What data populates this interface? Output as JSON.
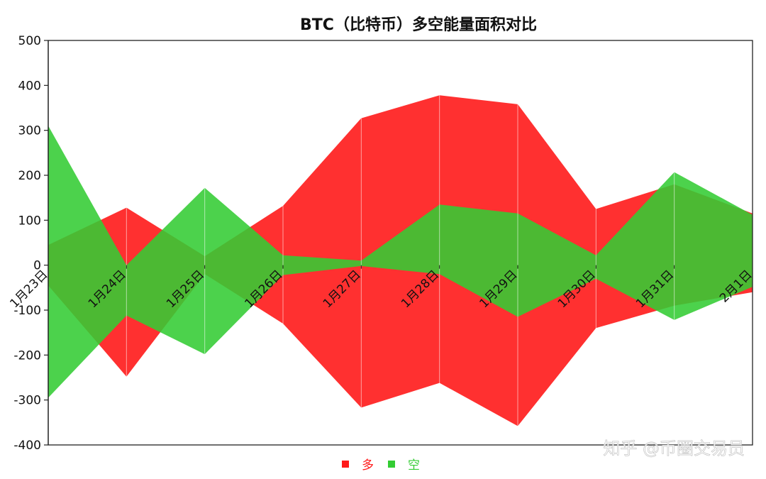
{
  "chart_data": {
    "type": "area",
    "title": "BTC（比特币）多空能量面积对比",
    "categories": [
      "1月23日",
      "1月24日",
      "1月25日",
      "1月26日",
      "1月27日",
      "1月28日",
      "1月29日",
      "1月30日",
      "1月31日",
      "2月1日"
    ],
    "ylim": [
      -400,
      500
    ],
    "yticks": [
      -400,
      -300,
      -200,
      -100,
      0,
      100,
      200,
      300,
      400,
      500
    ],
    "series": [
      {
        "name": "多",
        "color": "#ff1a1a",
        "upper": [
          45,
          128,
          20,
          132,
          327,
          378,
          358,
          125,
          180,
          115
        ],
        "lower": [
          -45,
          -248,
          -20,
          -130,
          -317,
          -262,
          -358,
          -140,
          -90,
          -60
        ]
      },
      {
        "name": "空",
        "color": "#33cc33",
        "upper": [
          310,
          0,
          172,
          22,
          10,
          135,
          115,
          22,
          207,
          112
        ],
        "lower": [
          -295,
          -112,
          -198,
          -22,
          -2,
          -20,
          -115,
          -30,
          -122,
          -48
        ]
      }
    ],
    "grid": false,
    "legend_position": "bottom-center"
  },
  "watermark": "知乎 @币圈交易员"
}
